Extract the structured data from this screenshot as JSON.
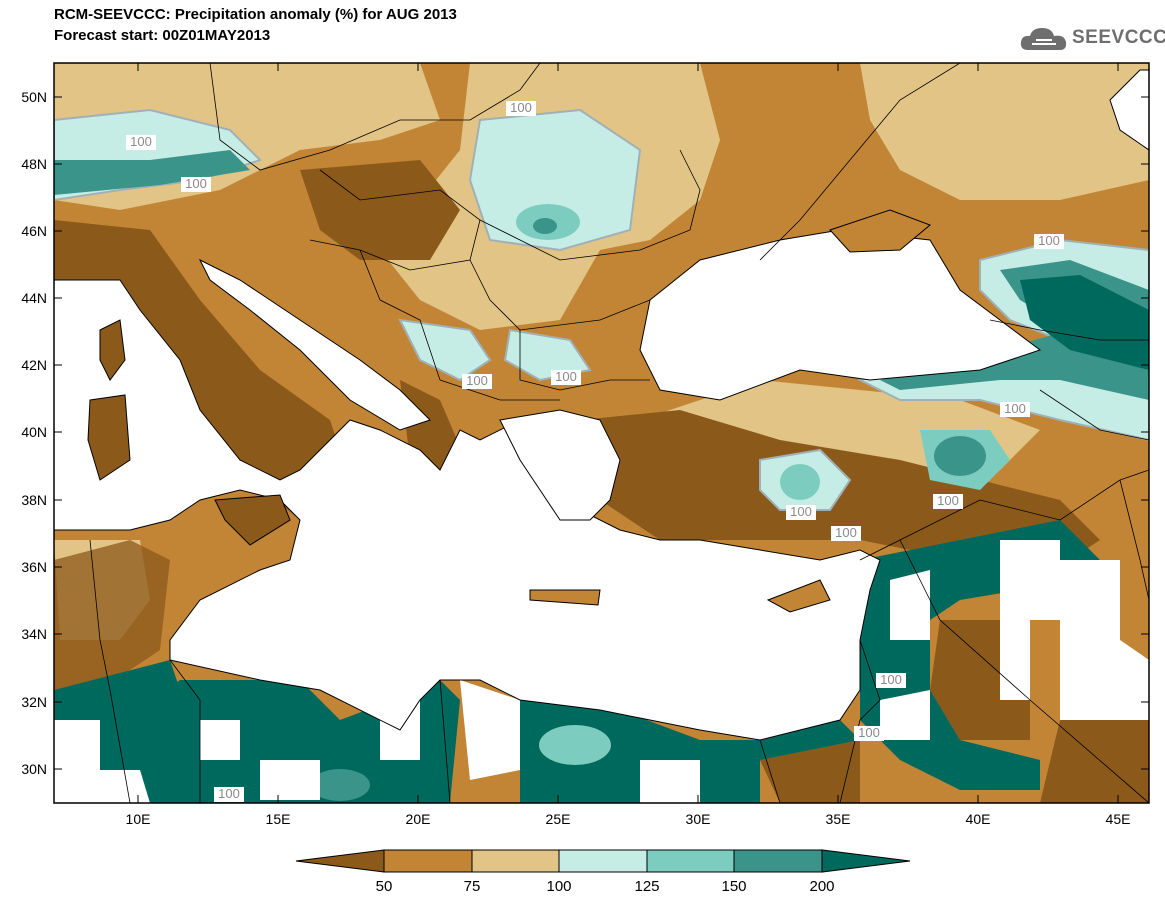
{
  "header": {
    "title": "RCM-SEEVCCC: Precipitation anomaly (%) for AUG 2013",
    "subtitle": "Forecast start: 00Z01MAY2013",
    "logo_text": "SEEVCCC"
  },
  "map": {
    "lat_labels": [
      "50N",
      "48N",
      "46N",
      "44N",
      "42N",
      "40N",
      "38N",
      "36N",
      "34N",
      "32N",
      "30N"
    ],
    "lon_labels": [
      "10E",
      "15E",
      "20E",
      "25E",
      "30E",
      "35E",
      "40E",
      "45E"
    ],
    "contour_label": "100"
  },
  "legend": {
    "labels": [
      "50",
      "75",
      "100",
      "125",
      "150",
      "200"
    ],
    "colors": [
      "#8b5a1b",
      "#c28536",
      "#e2c486",
      "#c6ede5",
      "#7ccdbf",
      "#3a948a",
      "#00695e"
    ]
  },
  "colors": {
    "sea": "#ffffff",
    "land_dry": "#c28536"
  }
}
